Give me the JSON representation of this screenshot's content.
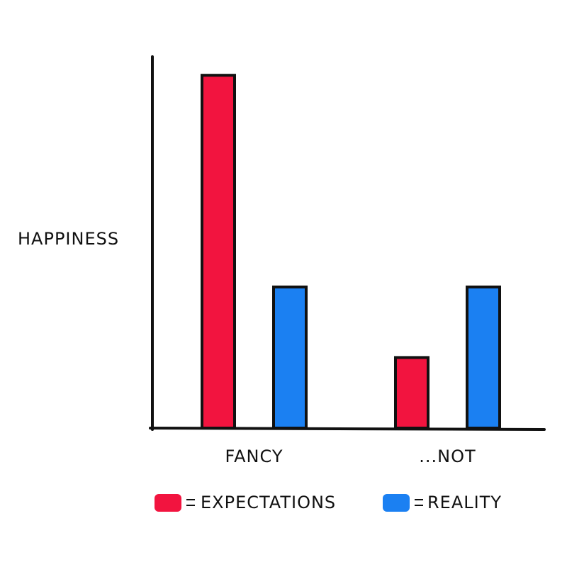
{
  "chart_data": {
    "type": "bar",
    "ylabel": "HAPPINESS",
    "categories": [
      "FANCY",
      "...NOT"
    ],
    "series": [
      {
        "name": "EXPECTATIONS",
        "color": "#f2143f",
        "values": [
          95,
          19
        ]
      },
      {
        "name": "REALITY",
        "color": "#1b80f2",
        "values": [
          38,
          38
        ]
      }
    ],
    "ylim": [
      0,
      100
    ]
  }
}
